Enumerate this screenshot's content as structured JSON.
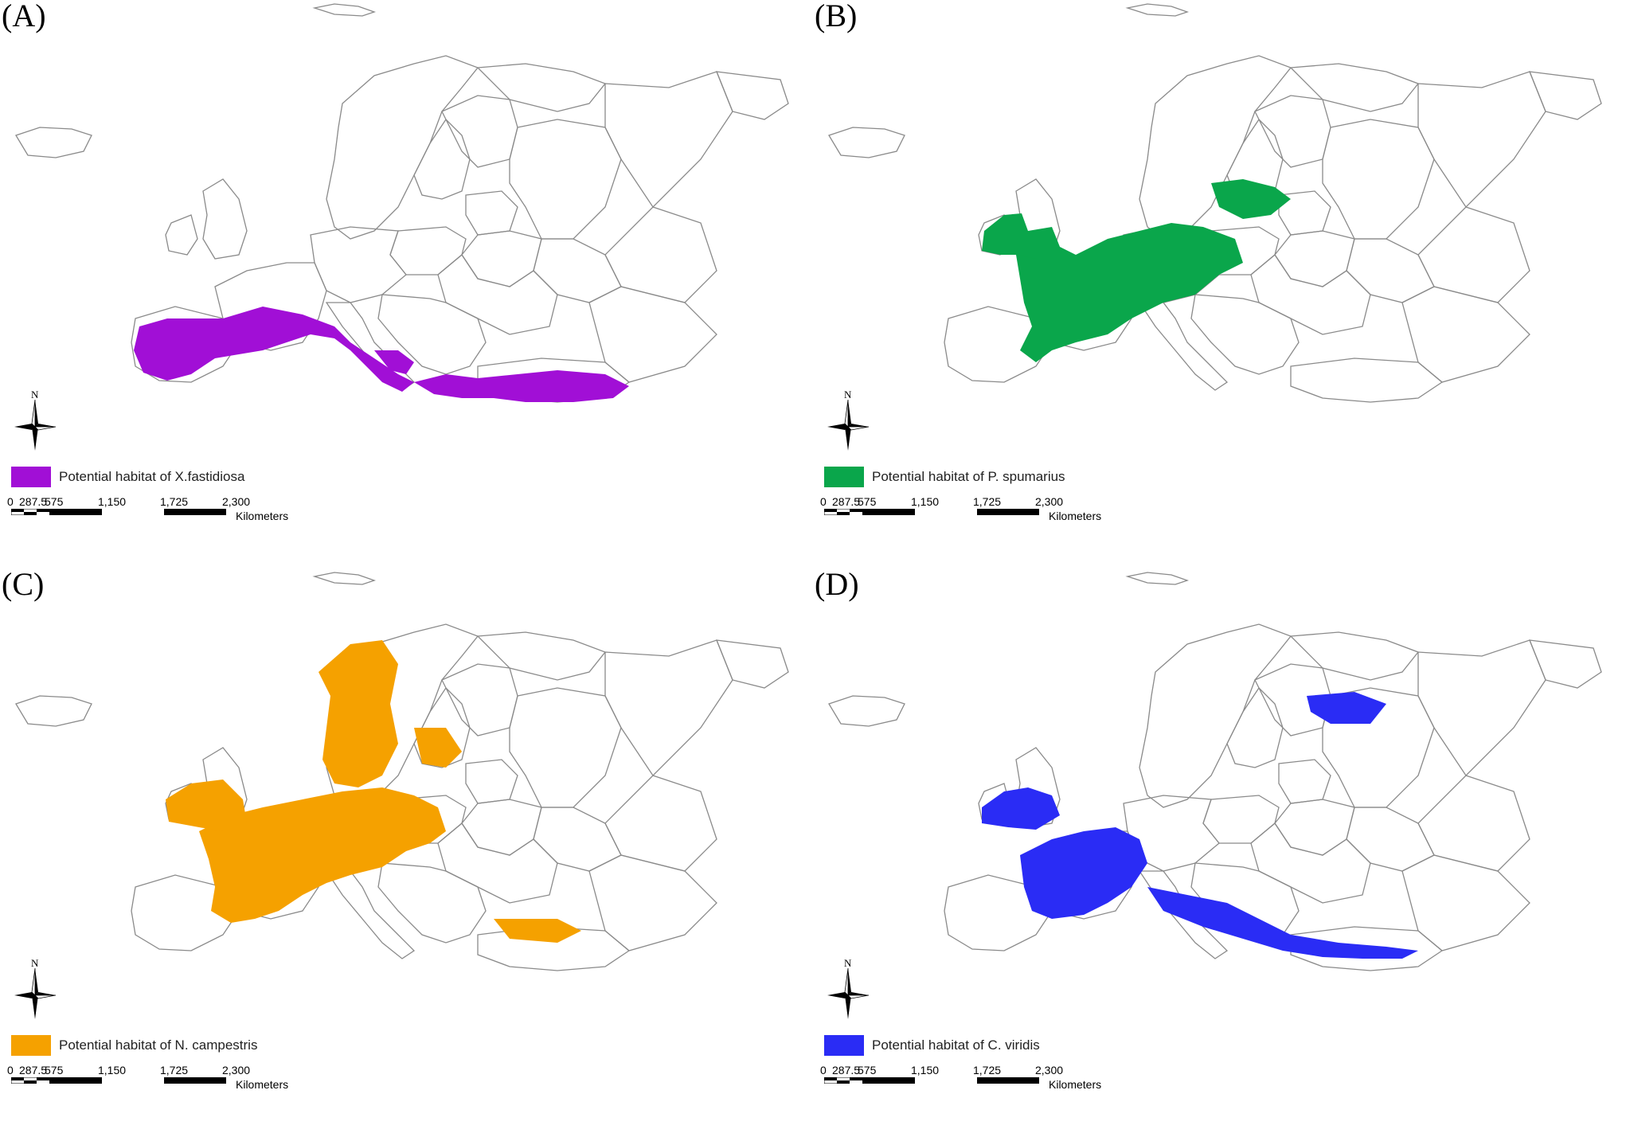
{
  "panels": [
    {
      "label": "(A)",
      "legend_text": "Potential habitat of X.fastidiosa",
      "color": "#a10fd6"
    },
    {
      "label": "(B)",
      "legend_text": "Potential habitat of P. spumarius",
      "color": "#0aa64b"
    },
    {
      "label": "(C)",
      "legend_text": "Potential habitat of N. campestris",
      "color": "#f5a100"
    },
    {
      "label": "(D)",
      "legend_text": "Potential habitat of C. viridis",
      "color": "#2a2cf5"
    }
  ],
  "scale_bar": {
    "ticks": [
      "0",
      "287.5",
      "575",
      "1,150",
      "1,725",
      "2,300"
    ],
    "units": "Kilometers"
  },
  "compass_label": "N"
}
